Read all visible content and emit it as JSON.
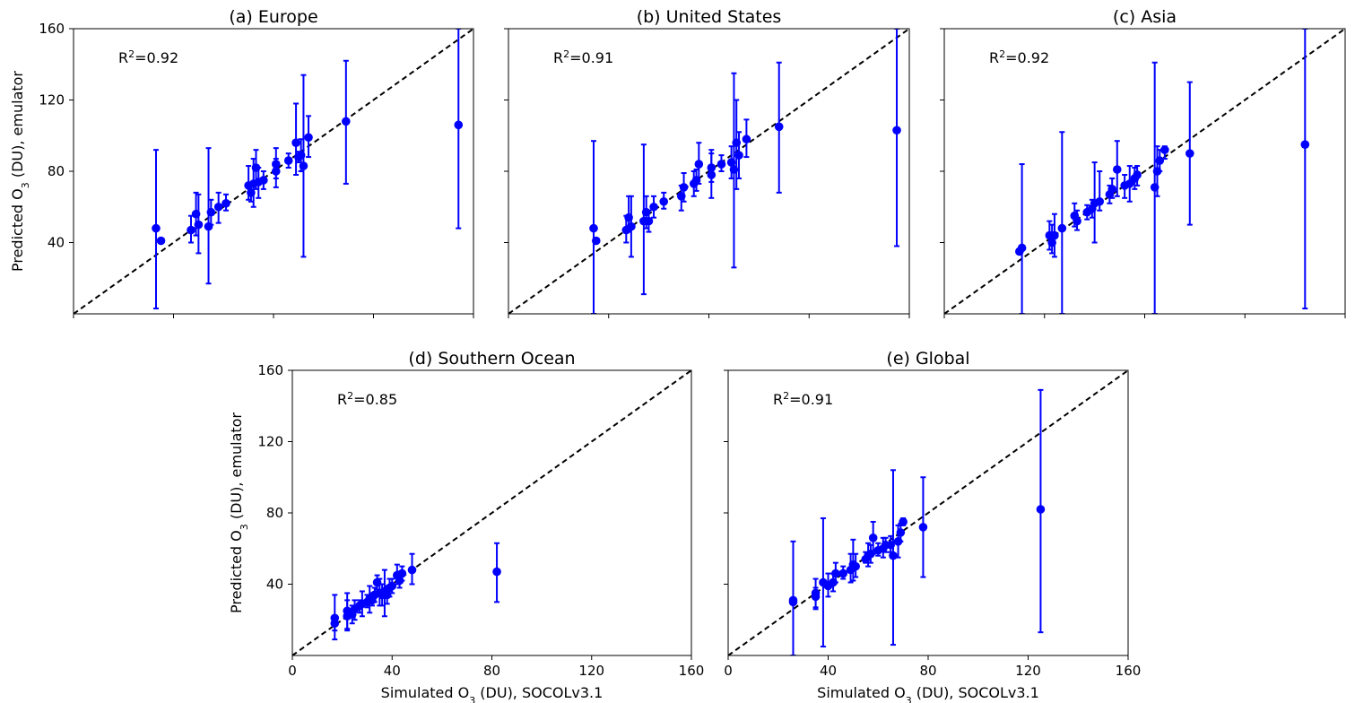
{
  "chart_data": [
    {
      "type": "scatter",
      "title": "(a) Europe",
      "annotation": {
        "base": "R",
        "sup": "2",
        "rest": "=0.92"
      },
      "xlim": [
        0,
        160
      ],
      "ylim": [
        0,
        160
      ],
      "xticks": [
        0,
        40,
        80,
        120,
        160
      ],
      "yticks": [
        40,
        80,
        120,
        160
      ],
      "xlabel": "",
      "ylabel": {
        "pre": "Predicted O",
        "sub": "3",
        "post": " (DU), emulator"
      },
      "show_x_ticklabels": false,
      "show_y_ticklabels": true,
      "reference_line": "1:1 dashed",
      "points": [
        {
          "x": 33,
          "y": 48,
          "lo": 3,
          "hi": 92
        },
        {
          "x": 35,
          "y": 41,
          "lo": 41,
          "hi": 41
        },
        {
          "x": 47,
          "y": 47,
          "lo": 40,
          "hi": 55
        },
        {
          "x": 49,
          "y": 56,
          "lo": 44,
          "hi": 68
        },
        {
          "x": 50,
          "y": 50,
          "lo": 34,
          "hi": 67
        },
        {
          "x": 54,
          "y": 49,
          "lo": 17,
          "hi": 93
        },
        {
          "x": 55,
          "y": 57,
          "lo": 50,
          "hi": 64
        },
        {
          "x": 58,
          "y": 60,
          "lo": 51,
          "hi": 68
        },
        {
          "x": 61,
          "y": 62,
          "lo": 58,
          "hi": 67
        },
        {
          "x": 70,
          "y": 72,
          "lo": 64,
          "hi": 83
        },
        {
          "x": 71,
          "y": 68,
          "lo": 63,
          "hi": 73
        },
        {
          "x": 72,
          "y": 73,
          "lo": 60,
          "hi": 87
        },
        {
          "x": 73,
          "y": 82,
          "lo": 70,
          "hi": 92
        },
        {
          "x": 74,
          "y": 74,
          "lo": 65,
          "hi": 82
        },
        {
          "x": 76,
          "y": 75,
          "lo": 70,
          "hi": 80
        },
        {
          "x": 81,
          "y": 80,
          "lo": 71,
          "hi": 87
        },
        {
          "x": 81,
          "y": 84,
          "lo": 76,
          "hi": 93
        },
        {
          "x": 86,
          "y": 86,
          "lo": 82,
          "hi": 90
        },
        {
          "x": 89,
          "y": 96,
          "lo": 78,
          "hi": 118
        },
        {
          "x": 90,
          "y": 88,
          "lo": 85,
          "hi": 91
        },
        {
          "x": 91,
          "y": 89,
          "lo": 80,
          "hi": 98
        },
        {
          "x": 92,
          "y": 83,
          "lo": 32,
          "hi": 134
        },
        {
          "x": 94,
          "y": 99,
          "lo": 88,
          "hi": 111
        },
        {
          "x": 109,
          "y": 108,
          "lo": 73,
          "hi": 142
        },
        {
          "x": 154,
          "y": 106,
          "lo": 48,
          "hi": 160
        }
      ]
    },
    {
      "type": "scatter",
      "title": "(b) United States",
      "annotation": {
        "base": "R",
        "sup": "2",
        "rest": "=0.91"
      },
      "xlim": [
        0,
        160
      ],
      "ylim": [
        0,
        160
      ],
      "xticks": [
        0,
        40,
        80,
        120,
        160
      ],
      "yticks": [
        40,
        80,
        120,
        160
      ],
      "xlabel": "",
      "ylabel": null,
      "show_x_ticklabels": false,
      "show_y_ticklabels": false,
      "reference_line": "1:1 dashed",
      "points": [
        {
          "x": 34,
          "y": 48,
          "lo": 0,
          "hi": 97
        },
        {
          "x": 35,
          "y": 41,
          "lo": 41,
          "hi": 41
        },
        {
          "x": 47,
          "y": 47,
          "lo": 40,
          "hi": 55
        },
        {
          "x": 48,
          "y": 54,
          "lo": 46,
          "hi": 66
        },
        {
          "x": 49,
          "y": 49,
          "lo": 32,
          "hi": 66
        },
        {
          "x": 54,
          "y": 52,
          "lo": 11,
          "hi": 95
        },
        {
          "x": 55,
          "y": 57,
          "lo": 48,
          "hi": 66
        },
        {
          "x": 56,
          "y": 52,
          "lo": 46,
          "hi": 58
        },
        {
          "x": 58,
          "y": 60,
          "lo": 54,
          "hi": 66
        },
        {
          "x": 62,
          "y": 63,
          "lo": 59,
          "hi": 68
        },
        {
          "x": 69,
          "y": 66,
          "lo": 58,
          "hi": 72
        },
        {
          "x": 70,
          "y": 71,
          "lo": 63,
          "hi": 79
        },
        {
          "x": 74,
          "y": 73,
          "lo": 66,
          "hi": 80
        },
        {
          "x": 75,
          "y": 75,
          "lo": 69,
          "hi": 81
        },
        {
          "x": 76,
          "y": 84,
          "lo": 73,
          "hi": 96
        },
        {
          "x": 81,
          "y": 82,
          "lo": 74,
          "hi": 92
        },
        {
          "x": 81,
          "y": 78,
          "lo": 65,
          "hi": 90
        },
        {
          "x": 85,
          "y": 84,
          "lo": 80,
          "hi": 89
        },
        {
          "x": 89,
          "y": 85,
          "lo": 76,
          "hi": 94
        },
        {
          "x": 90,
          "y": 81,
          "lo": 26,
          "hi": 135
        },
        {
          "x": 91,
          "y": 96,
          "lo": 70,
          "hi": 120
        },
        {
          "x": 92,
          "y": 89,
          "lo": 76,
          "hi": 102
        },
        {
          "x": 95,
          "y": 98,
          "lo": 88,
          "hi": 109
        },
        {
          "x": 108,
          "y": 105,
          "lo": 68,
          "hi": 141
        },
        {
          "x": 155,
          "y": 103,
          "lo": 38,
          "hi": 160
        }
      ]
    },
    {
      "type": "scatter",
      "title": "(c) Asia",
      "annotation": {
        "base": "R",
        "sup": "2",
        "rest": "=0.92"
      },
      "xlim": [
        0,
        160
      ],
      "ylim": [
        0,
        160
      ],
      "xticks": [
        0,
        40,
        80,
        120,
        160
      ],
      "yticks": [
        40,
        80,
        120,
        160
      ],
      "xlabel": "",
      "ylabel": null,
      "show_x_ticklabels": false,
      "show_y_ticklabels": false,
      "reference_line": "1:1 dashed",
      "points": [
        {
          "x": 30,
          "y": 35,
          "lo": 35,
          "hi": 35
        },
        {
          "x": 31,
          "y": 37,
          "lo": 0,
          "hi": 84
        },
        {
          "x": 42,
          "y": 44,
          "lo": 36,
          "hi": 52
        },
        {
          "x": 43,
          "y": 40,
          "lo": 34,
          "hi": 50
        },
        {
          "x": 44,
          "y": 44,
          "lo": 32,
          "hi": 56
        },
        {
          "x": 47,
          "y": 48,
          "lo": 0,
          "hi": 102
        },
        {
          "x": 52,
          "y": 55,
          "lo": 49,
          "hi": 62
        },
        {
          "x": 53,
          "y": 52,
          "lo": 47,
          "hi": 58
        },
        {
          "x": 57,
          "y": 57,
          "lo": 53,
          "hi": 61
        },
        {
          "x": 59,
          "y": 59,
          "lo": 54,
          "hi": 64
        },
        {
          "x": 60,
          "y": 62,
          "lo": 40,
          "hi": 85
        },
        {
          "x": 62,
          "y": 63,
          "lo": 58,
          "hi": 80
        },
        {
          "x": 66,
          "y": 67,
          "lo": 62,
          "hi": 72
        },
        {
          "x": 67,
          "y": 70,
          "lo": 65,
          "hi": 76
        },
        {
          "x": 69,
          "y": 81,
          "lo": 66,
          "hi": 97
        },
        {
          "x": 72,
          "y": 72,
          "lo": 65,
          "hi": 78
        },
        {
          "x": 74,
          "y": 73,
          "lo": 63,
          "hi": 83
        },
        {
          "x": 76,
          "y": 76,
          "lo": 70,
          "hi": 82
        },
        {
          "x": 77,
          "y": 78,
          "lo": 72,
          "hi": 83
        },
        {
          "x": 84,
          "y": 71,
          "lo": 0,
          "hi": 141
        },
        {
          "x": 85,
          "y": 80,
          "lo": 66,
          "hi": 94
        },
        {
          "x": 86,
          "y": 86,
          "lo": 80,
          "hi": 92
        },
        {
          "x": 88,
          "y": 92,
          "lo": 87,
          "hi": 94
        },
        {
          "x": 98,
          "y": 90,
          "lo": 50,
          "hi": 130
        },
        {
          "x": 144,
          "y": 95,
          "lo": 3,
          "hi": 160
        }
      ]
    },
    {
      "type": "scatter",
      "title": "(d) Southern Ocean",
      "annotation": {
        "base": "R",
        "sup": "2",
        "rest": "=0.85"
      },
      "xlim": [
        0,
        160
      ],
      "ylim": [
        0,
        160
      ],
      "xticks": [
        0,
        40,
        80,
        120,
        160
      ],
      "yticks": [
        40,
        80,
        120,
        160
      ],
      "xlabel": {
        "pre": "Simulated O",
        "sub": "3",
        "post": " (DU), SOCOLv3.1"
      },
      "ylabel": {
        "pre": "Predicted O",
        "sub": "3",
        "post": " (DU), emulator"
      },
      "show_x_ticklabels": true,
      "show_y_ticklabels": true,
      "reference_line": "1:1 dashed",
      "points": [
        {
          "x": 17,
          "y": 21,
          "lo": 9,
          "hi": 34
        },
        {
          "x": 17,
          "y": 18,
          "lo": 14,
          "hi": 22
        },
        {
          "x": 22,
          "y": 22,
          "lo": 14,
          "hi": 31
        },
        {
          "x": 22,
          "y": 25,
          "lo": 15,
          "hi": 35
        },
        {
          "x": 24,
          "y": 23,
          "lo": 18,
          "hi": 28
        },
        {
          "x": 25,
          "y": 26,
          "lo": 20,
          "hi": 31
        },
        {
          "x": 27,
          "y": 28,
          "lo": 24,
          "hi": 31
        },
        {
          "x": 28,
          "y": 29,
          "lo": 22,
          "hi": 36
        },
        {
          "x": 30,
          "y": 30,
          "lo": 27,
          "hi": 34
        },
        {
          "x": 31,
          "y": 32,
          "lo": 24,
          "hi": 39
        },
        {
          "x": 32,
          "y": 31,
          "lo": 28,
          "hi": 35
        },
        {
          "x": 33,
          "y": 34,
          "lo": 30,
          "hi": 38
        },
        {
          "x": 34,
          "y": 41,
          "lo": 37,
          "hi": 45
        },
        {
          "x": 35,
          "y": 35,
          "lo": 28,
          "hi": 43
        },
        {
          "x": 36,
          "y": 34,
          "lo": 28,
          "hi": 40
        },
        {
          "x": 37,
          "y": 36,
          "lo": 22,
          "hi": 48
        },
        {
          "x": 38,
          "y": 34,
          "lo": 29,
          "hi": 39
        },
        {
          "x": 39,
          "y": 38,
          "lo": 33,
          "hi": 43
        },
        {
          "x": 40,
          "y": 39,
          "lo": 35,
          "hi": 43
        },
        {
          "x": 42,
          "y": 45,
          "lo": 40,
          "hi": 51
        },
        {
          "x": 43,
          "y": 42,
          "lo": 38,
          "hi": 47
        },
        {
          "x": 44,
          "y": 46,
          "lo": 42,
          "hi": 50
        },
        {
          "x": 48,
          "y": 48,
          "lo": 40,
          "hi": 57
        },
        {
          "x": 82,
          "y": 47,
          "lo": 30,
          "hi": 63
        }
      ]
    },
    {
      "type": "scatter",
      "title": "(e) Global",
      "annotation": {
        "base": "R",
        "sup": "2",
        "rest": "=0.91"
      },
      "xlim": [
        0,
        160
      ],
      "ylim": [
        0,
        160
      ],
      "xticks": [
        0,
        40,
        80,
        120,
        160
      ],
      "yticks": [
        40,
        80,
        120,
        160
      ],
      "xlabel": {
        "pre": "Simulated O",
        "sub": "3",
        "post": " (DU), SOCOLv3.1"
      },
      "ylabel": null,
      "show_x_ticklabels": true,
      "show_y_ticklabels": false,
      "reference_line": "1:1 dashed",
      "points": [
        {
          "x": 26,
          "y": 30,
          "lo": 0,
          "hi": 64
        },
        {
          "x": 26,
          "y": 31,
          "lo": 31,
          "hi": 31
        },
        {
          "x": 35,
          "y": 35,
          "lo": 26,
          "hi": 43
        },
        {
          "x": 35,
          "y": 33,
          "lo": 27,
          "hi": 38
        },
        {
          "x": 38,
          "y": 41,
          "lo": 5,
          "hi": 77
        },
        {
          "x": 40,
          "y": 39,
          "lo": 33,
          "hi": 46
        },
        {
          "x": 42,
          "y": 41,
          "lo": 36,
          "hi": 46
        },
        {
          "x": 43,
          "y": 46,
          "lo": 41,
          "hi": 52
        },
        {
          "x": 46,
          "y": 46,
          "lo": 43,
          "hi": 50
        },
        {
          "x": 49,
          "y": 48,
          "lo": 41,
          "hi": 57
        },
        {
          "x": 50,
          "y": 51,
          "lo": 42,
          "hi": 65
        },
        {
          "x": 51,
          "y": 50,
          "lo": 44,
          "hi": 57
        },
        {
          "x": 55,
          "y": 54,
          "lo": 52,
          "hi": 58
        },
        {
          "x": 56,
          "y": 56,
          "lo": 50,
          "hi": 63
        },
        {
          "x": 57,
          "y": 57,
          "lo": 52,
          "hi": 62
        },
        {
          "x": 58,
          "y": 66,
          "lo": 57,
          "hi": 75
        },
        {
          "x": 60,
          "y": 59,
          "lo": 56,
          "hi": 63
        },
        {
          "x": 62,
          "y": 60,
          "lo": 55,
          "hi": 66
        },
        {
          "x": 63,
          "y": 62,
          "lo": 58,
          "hi": 66
        },
        {
          "x": 65,
          "y": 62,
          "lo": 58,
          "hi": 67
        },
        {
          "x": 66,
          "y": 56,
          "lo": 6,
          "hi": 104
        },
        {
          "x": 68,
          "y": 64,
          "lo": 55,
          "hi": 73
        },
        {
          "x": 69,
          "y": 69,
          "lo": 64,
          "hi": 74
        },
        {
          "x": 70,
          "y": 75,
          "lo": 73,
          "hi": 77
        },
        {
          "x": 78,
          "y": 72,
          "lo": 44,
          "hi": 100
        },
        {
          "x": 125,
          "y": 82,
          "lo": 13,
          "hi": 149
        }
      ]
    }
  ],
  "colors": {
    "points": "#0000ff",
    "errorbars": "#0000ff",
    "reference_line": "#000000",
    "axes": "#000000"
  }
}
